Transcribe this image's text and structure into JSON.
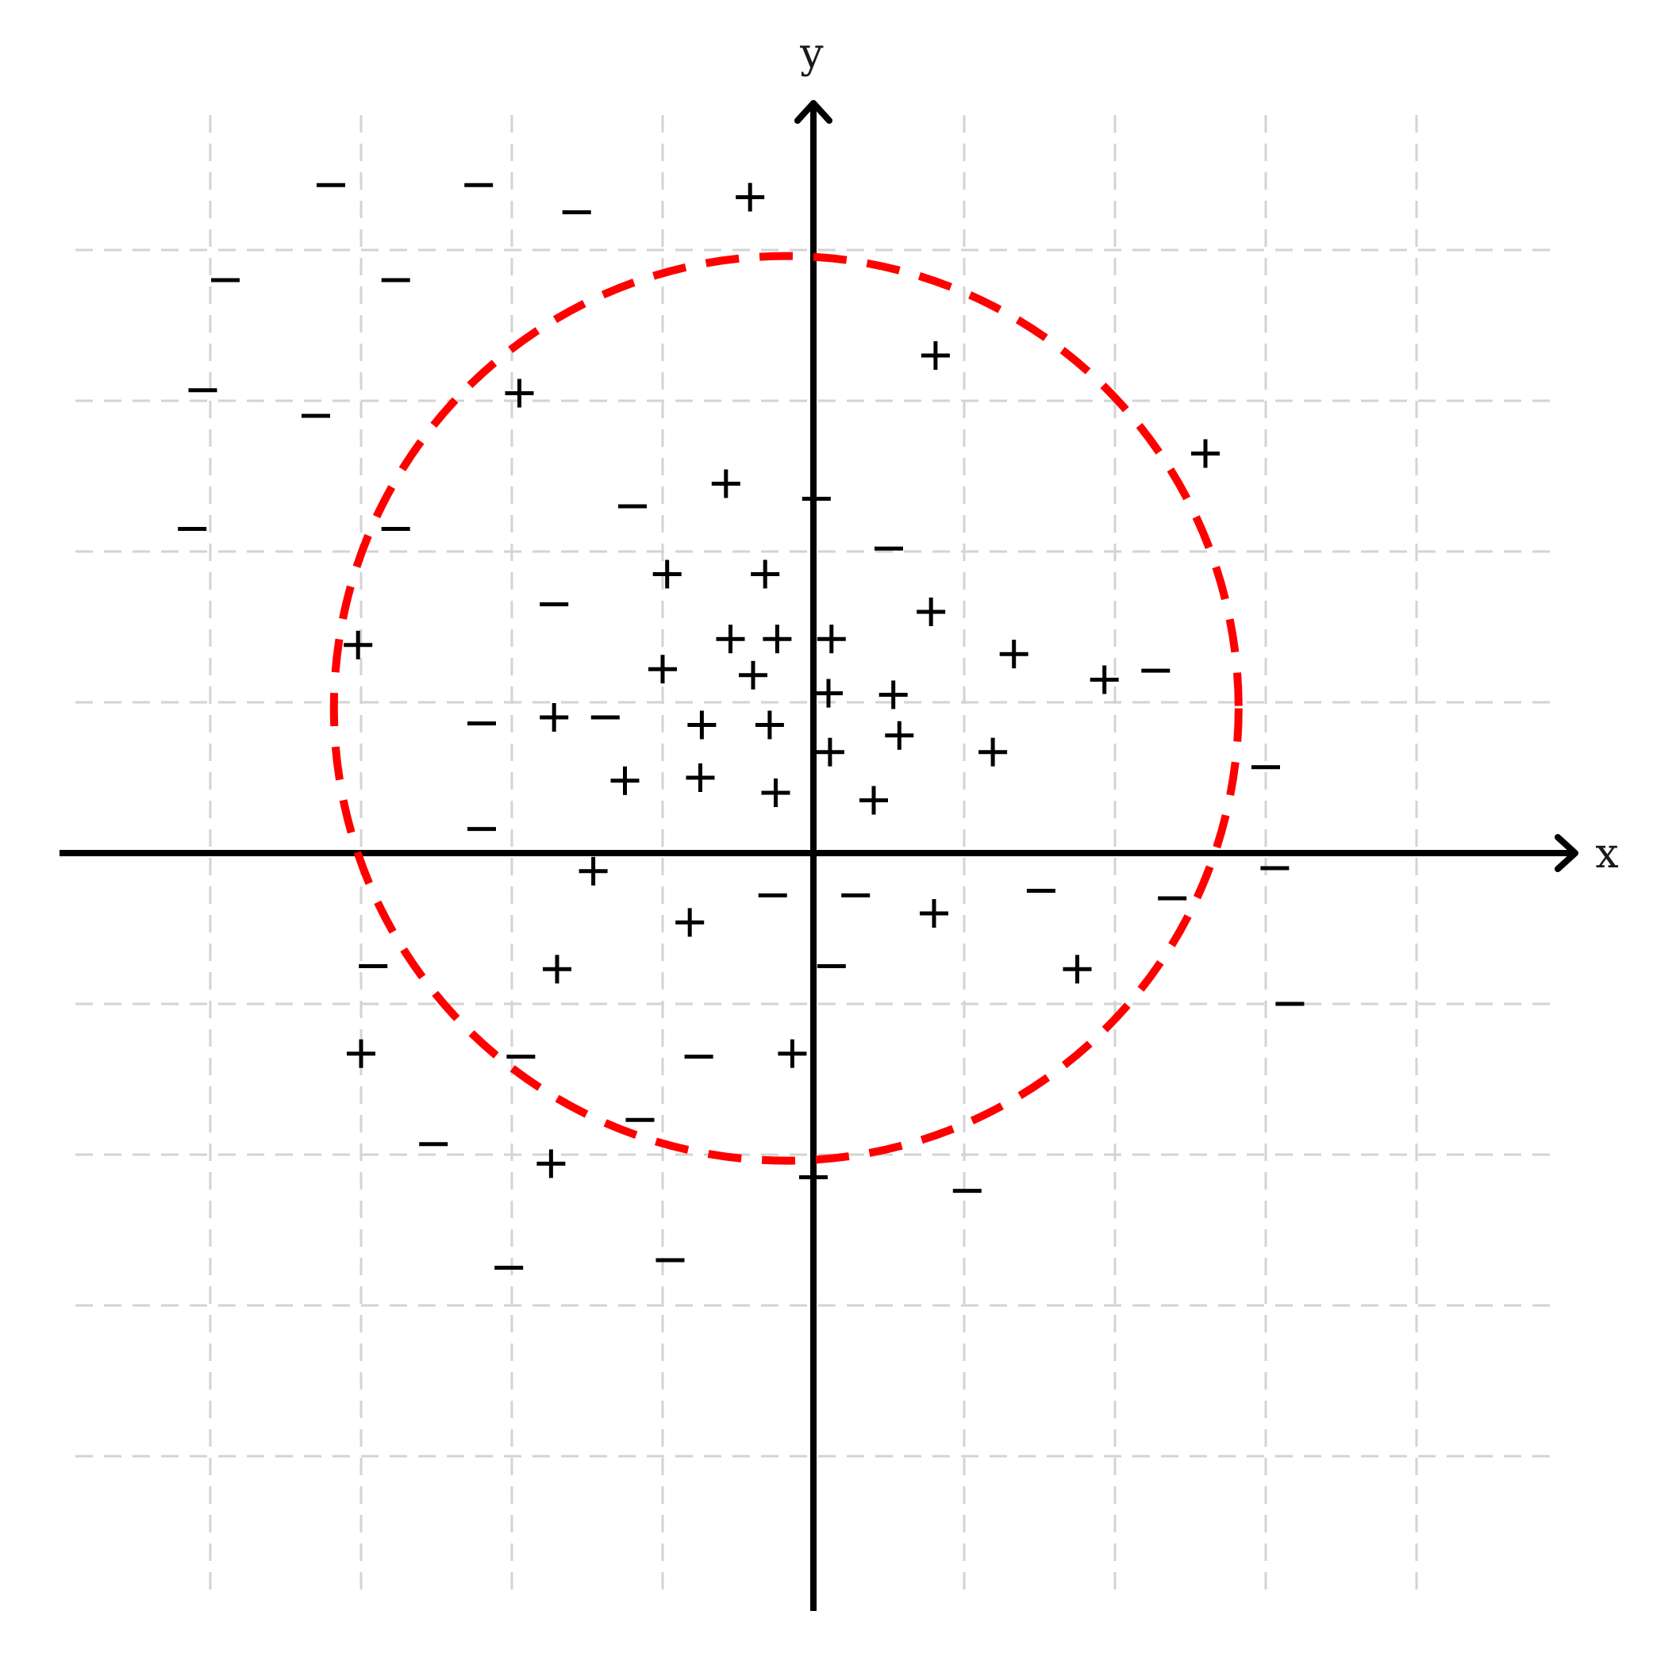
{
  "axes": {
    "x_label": "x",
    "y_label": "y"
  },
  "colors": {
    "boundary": "#ff0000",
    "grid": "#d3d3d3",
    "axis": "#000000"
  },
  "chart_data": {
    "type": "scatter",
    "grid": true,
    "xlim": [
      -5,
      5
    ],
    "ylim": [
      -5,
      5
    ],
    "boundary": {
      "shape": "circle",
      "style": "dashed",
      "center": [
        -0.18,
        0.96
      ],
      "radius": 3.0
    },
    "series": [
      {
        "marker": "+",
        "points": [
          [
            -0.42,
            4.35
          ],
          [
            0.81,
            3.3
          ],
          [
            -1.95,
            3.05
          ],
          [
            2.6,
            2.65
          ],
          [
            -0.58,
            2.45
          ],
          [
            -0.97,
            1.85
          ],
          [
            -0.32,
            1.85
          ],
          [
            0.78,
            1.6
          ],
          [
            -0.55,
            1.42
          ],
          [
            -0.24,
            1.42
          ],
          [
            0.12,
            1.42
          ],
          [
            1.33,
            1.32
          ],
          [
            -3.02,
            1.38
          ],
          [
            -1.0,
            1.22
          ],
          [
            -0.4,
            1.18
          ],
          [
            0.1,
            1.06
          ],
          [
            0.53,
            1.05
          ],
          [
            1.93,
            1.15
          ],
          [
            -1.72,
            0.9
          ],
          [
            -0.74,
            0.85
          ],
          [
            -0.29,
            0.85
          ],
          [
            0.57,
            0.78
          ],
          [
            0.11,
            0.67
          ],
          [
            1.19,
            0.67
          ],
          [
            -1.25,
            0.48
          ],
          [
            -0.75,
            0.5
          ],
          [
            -0.25,
            0.4
          ],
          [
            0.4,
            0.35
          ],
          [
            -1.46,
            -0.12
          ],
          [
            -0.82,
            -0.46
          ],
          [
            0.8,
            -0.4
          ],
          [
            -1.7,
            -0.77
          ],
          [
            1.75,
            -0.77
          ],
          [
            -3.0,
            -1.33
          ],
          [
            -0.14,
            -1.33
          ],
          [
            -1.74,
            -2.06
          ]
        ]
      },
      {
        "marker": "−",
        "points": [
          [
            -3.2,
            4.43
          ],
          [
            -2.22,
            4.43
          ],
          [
            -1.57,
            4.25
          ],
          [
            -3.9,
            3.8
          ],
          [
            -2.77,
            3.8
          ],
          [
            -4.05,
            3.07
          ],
          [
            -3.3,
            2.9
          ],
          [
            -4.12,
            2.15
          ],
          [
            -2.77,
            2.15
          ],
          [
            -1.2,
            2.3
          ],
          [
            0.02,
            2.35
          ],
          [
            0.5,
            2.02
          ],
          [
            -1.72,
            1.65
          ],
          [
            2.27,
            1.21
          ],
          [
            -2.2,
            0.86
          ],
          [
            -1.38,
            0.9
          ],
          [
            3.0,
            0.57
          ],
          [
            -2.2,
            0.16
          ],
          [
            0.95,
            0.0
          ],
          [
            3.06,
            -0.1
          ],
          [
            -0.27,
            -0.28
          ],
          [
            0.28,
            -0.28
          ],
          [
            1.51,
            -0.25
          ],
          [
            2.38,
            -0.3
          ],
          [
            -2.92,
            -0.75
          ],
          [
            0.12,
            -0.75
          ],
          [
            3.16,
            -1.0
          ],
          [
            -1.94,
            -1.35
          ],
          [
            -0.76,
            -1.35
          ],
          [
            -1.15,
            -1.77
          ],
          [
            -2.52,
            -1.93
          ],
          [
            0.0,
            -2.15
          ],
          [
            1.02,
            -2.24
          ],
          [
            -0.95,
            -2.7
          ],
          [
            -2.02,
            -2.75
          ]
        ]
      }
    ]
  }
}
